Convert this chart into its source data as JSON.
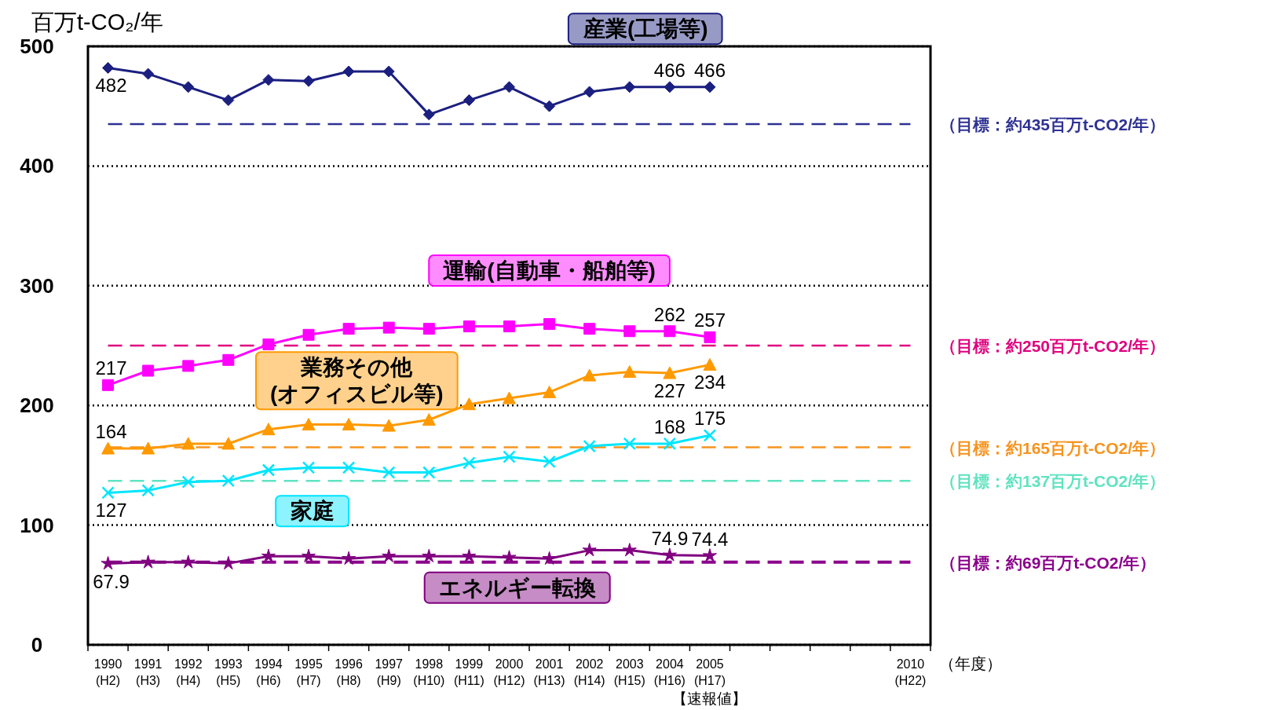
{
  "chart_data": {
    "type": "line",
    "ylabel": "百万t-CO₂/年",
    "xlabel": "（年度）",
    "categories": [
      "1990\n(H2)",
      "1991\n(H3)",
      "1992\n(H4)",
      "1993\n(H5)",
      "1994\n(H6)",
      "1995\n(H7)",
      "1996\n(H8)",
      "1997\n(H9)",
      "1998\n(H10)",
      "1999\n(H11)",
      "2000\n(H12)",
      "2001\n(H13)",
      "2002\n(H14)",
      "2003\n(H15)",
      "2004\n(H16)",
      "2005\n(H17)",
      null,
      null,
      null,
      null,
      "2010\n(H22)"
    ],
    "ylim": [
      0,
      500
    ],
    "yticks": [
      0,
      100,
      200,
      300,
      400,
      500
    ],
    "grid": "y",
    "line_style": "solid",
    "series": [
      {
        "name": "産業(工場等)",
        "color": "#1b1f80",
        "marker": "diamond",
        "values": [
          482,
          477,
          466,
          455,
          472,
          471,
          479,
          479,
          443,
          455,
          466,
          450,
          462,
          466,
          466,
          466,
          null,
          null,
          null,
          null,
          null
        ],
        "value_labels": [
          "482",
          null,
          null,
          null,
          null,
          null,
          null,
          null,
          null,
          null,
          null,
          null,
          null,
          null,
          "466",
          "466",
          null,
          null,
          null,
          null,
          null
        ]
      },
      {
        "name": "運輸(自動車・船舶等)",
        "color": "#ff00ff",
        "marker": "square",
        "values": [
          217,
          229,
          233,
          238,
          251,
          259,
          264,
          265,
          264,
          266,
          266,
          268,
          264,
          262,
          262,
          257,
          null,
          null,
          null,
          null,
          null
        ],
        "value_labels": [
          "217",
          null,
          null,
          null,
          null,
          null,
          null,
          null,
          null,
          null,
          null,
          null,
          null,
          null,
          "262",
          "257",
          null,
          null,
          null,
          null,
          null
        ]
      },
      {
        "name": "業務その他\n(オフィスビル等)",
        "color": "#ff9900",
        "marker": "triangle",
        "values": [
          164,
          164,
          168,
          168,
          180,
          184,
          184,
          183,
          188,
          201,
          206,
          211,
          225,
          228,
          227,
          234,
          null,
          null,
          null,
          null,
          null
        ],
        "value_labels": [
          "164",
          null,
          null,
          null,
          null,
          null,
          null,
          null,
          null,
          null,
          null,
          null,
          null,
          null,
          "227",
          "234",
          null,
          null,
          null,
          null,
          null
        ]
      },
      {
        "name": "家庭",
        "color": "#00e5ff",
        "marker": "cross",
        "values": [
          127,
          129,
          136,
          137,
          146,
          148,
          148,
          144,
          144,
          152,
          157,
          153,
          166,
          168,
          168,
          175,
          null,
          null,
          null,
          null,
          null
        ],
        "value_labels": [
          "127",
          null,
          null,
          null,
          null,
          null,
          null,
          null,
          null,
          null,
          null,
          null,
          null,
          null,
          "168",
          "175",
          null,
          null,
          null,
          null,
          null
        ]
      },
      {
        "name": "エネルギー転換",
        "color": "#800080",
        "marker": "star",
        "values": [
          67.9,
          69,
          69,
          68,
          74,
          74,
          72,
          74,
          74,
          74,
          73,
          72,
          79,
          79,
          74.9,
          74.4,
          null,
          null,
          null,
          null,
          null
        ],
        "value_labels": [
          "67.9",
          null,
          null,
          null,
          null,
          null,
          null,
          null,
          null,
          null,
          null,
          null,
          null,
          null,
          "74.9",
          "74.4",
          null,
          null,
          null,
          null,
          null
        ]
      }
    ],
    "ref_lines": [
      {
        "axis": "y",
        "value": 435,
        "label": "（目標：約435百万t-CO2/年）",
        "color": "#2e3192",
        "line_style": "dashed"
      },
      {
        "axis": "y",
        "value": 250,
        "label": "（目標：約250百万t-CO2/年）",
        "color": "#e0007f",
        "line_style": "dashed"
      },
      {
        "axis": "y",
        "value": 165,
        "label": "（目標：約165百万t-CO2/年）",
        "color": "#f7931e",
        "line_style": "dashed"
      },
      {
        "axis": "y",
        "value": 137,
        "label": "（目標：約137百万t-CO2/年）",
        "color": "#5fe3c0",
        "line_style": "dashed"
      },
      {
        "axis": "y",
        "value": 69,
        "label": "（目標：約69百万t-CO2/年）",
        "color": "#8b008b",
        "line_style": "dashed"
      }
    ],
    "annotations": [
      "【速報値】"
    ]
  }
}
